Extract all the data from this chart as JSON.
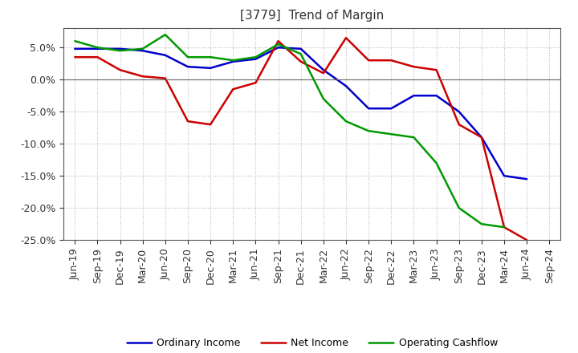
{
  "title": "[3779]  Trend of Margin",
  "x_labels": [
    "Jun-19",
    "Sep-19",
    "Dec-19",
    "Mar-20",
    "Jun-20",
    "Sep-20",
    "Dec-20",
    "Mar-21",
    "Jun-21",
    "Sep-21",
    "Dec-21",
    "Mar-22",
    "Jun-22",
    "Sep-22",
    "Dec-22",
    "Mar-23",
    "Jun-23",
    "Sep-23",
    "Dec-23",
    "Mar-24",
    "Jun-24",
    "Sep-24"
  ],
  "ordinary_income": [
    4.8,
    4.8,
    4.8,
    4.5,
    3.8,
    2.0,
    1.8,
    2.8,
    3.2,
    5.0,
    4.8,
    1.5,
    -1.0,
    -4.5,
    -4.5,
    -2.5,
    -2.5,
    -5.0,
    -9.0,
    -15.0,
    -15.5,
    null
  ],
  "net_income": [
    3.5,
    3.5,
    1.5,
    0.5,
    0.2,
    -6.5,
    -7.0,
    -1.5,
    -0.5,
    6.0,
    2.8,
    1.0,
    6.5,
    3.0,
    3.0,
    2.0,
    1.5,
    -7.0,
    -9.0,
    -23.0,
    -25.0,
    null
  ],
  "operating_cashflow": [
    6.0,
    5.0,
    4.5,
    4.8,
    7.0,
    3.5,
    3.5,
    3.0,
    3.5,
    5.5,
    4.0,
    -3.0,
    -6.5,
    -8.0,
    -8.5,
    -9.0,
    -13.0,
    -20.0,
    -22.5,
    -23.0,
    null,
    null
  ],
  "ylim": [
    -25.0,
    8.0
  ],
  "yticks": [
    5.0,
    0.0,
    -5.0,
    -10.0,
    -15.0,
    -20.0,
    -25.0
  ],
  "line_colors": {
    "ordinary_income": "#0000cc",
    "net_income": "#cc0000",
    "operating_cashflow": "#009900"
  },
  "line_width": 1.8,
  "background_color": "#ffffff",
  "grid_color": "#aaaaaa",
  "legend_labels": [
    "Ordinary Income",
    "Net Income",
    "Operating Cashflow"
  ],
  "title_fontsize": 11,
  "tick_fontsize": 9,
  "legend_fontsize": 9
}
